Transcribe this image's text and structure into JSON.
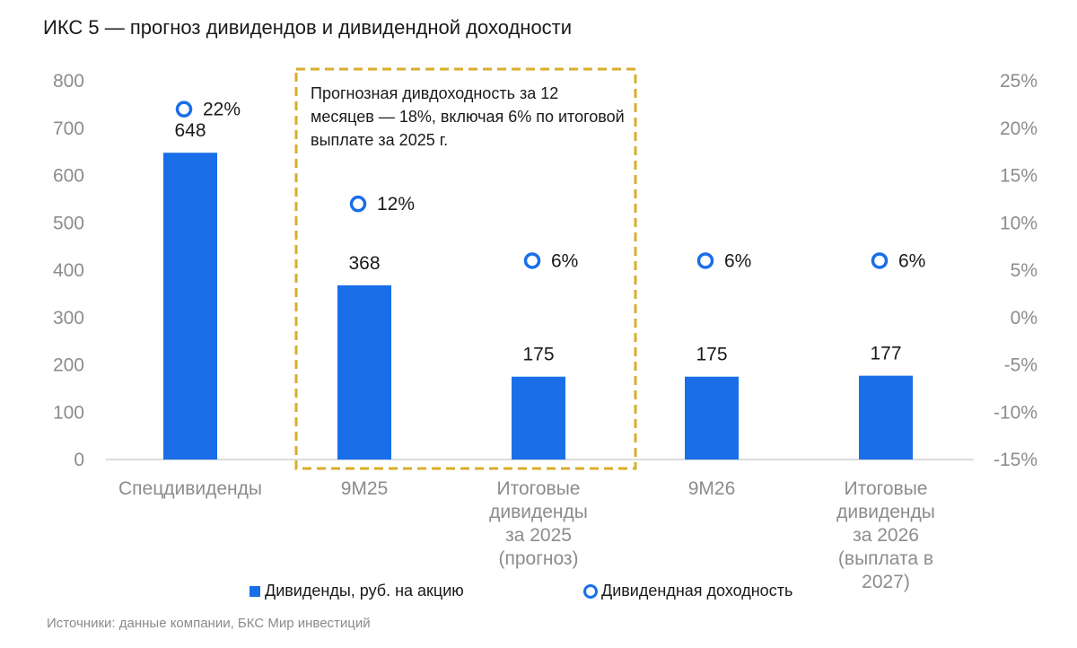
{
  "title": "ИКС 5 — прогноз дивидендов и дивидендной доходности",
  "source": "Источники: данные компании, БКС Мир инвестиций",
  "annotation": "Прогнозная дивдоходность за 12 месяцев — 18%, включая 6% по итоговой выплате за 2025 г.",
  "colors": {
    "bar": "#1a6fe8",
    "ring": "#1a6fe8",
    "box": "#d9ad2b",
    "axis": "#8c8c8c"
  },
  "legend": {
    "bars": "Дивиденды, руб. на акцию",
    "ring": "Дивидендная доходность"
  },
  "chart_data": {
    "type": "bar",
    "title": "ИКС 5 — прогноз дивидендов и дивидендной доходности",
    "categories": [
      [
        "Спецдивиденды"
      ],
      [
        "9M25"
      ],
      [
        "Итоговые",
        "дивиденды",
        "за 2025",
        "(прогноз)"
      ],
      [
        "9M26"
      ],
      [
        "Итоговые",
        "дивиденды",
        "за 2026",
        "(выплата в",
        "2027)"
      ]
    ],
    "series": [
      {
        "name": "Дивиденды, руб. на акцию",
        "axis": "left",
        "values": [
          648,
          368,
          175,
          175,
          177
        ],
        "labels": [
          "648",
          "368",
          "175",
          "175",
          "177"
        ]
      },
      {
        "name": "Дивидендная доходность",
        "axis": "right",
        "values": [
          22,
          12,
          6,
          6,
          6
        ],
        "labels": [
          "22%",
          "12%",
          "6%",
          "6%",
          "6%"
        ]
      }
    ],
    "ylim": [
      0,
      800
    ],
    "y_ticks": [
      "0",
      "100",
      "200",
      "300",
      "400",
      "500",
      "600",
      "700",
      "800"
    ],
    "y2lim": [
      -15,
      25
    ],
    "y2_ticks": [
      "-15%",
      "-10%",
      "-5%",
      "0%",
      "5%",
      "10%",
      "15%",
      "20%",
      "25%"
    ],
    "highlight_categories": [
      1,
      2
    ],
    "grid": false,
    "legend_position": "bottom"
  }
}
